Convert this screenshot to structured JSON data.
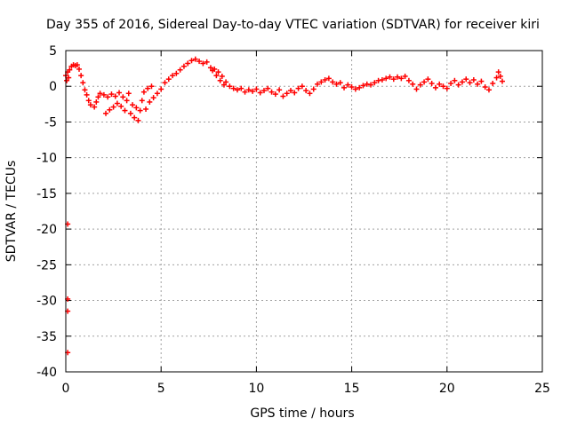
{
  "chart_data": {
    "type": "scatter",
    "title": "Day 355 of 2016, Sidereal Day-to-day VTEC variation (SDTVAR) for receiver kiri",
    "xlabel": "GPS time / hours",
    "ylabel": "SDTVAR / TECUs",
    "xlim": [
      0,
      25
    ],
    "ylim": [
      -40,
      5
    ],
    "xticks": [
      0,
      5,
      10,
      15,
      20,
      25
    ],
    "yticks": [
      5,
      0,
      -5,
      -10,
      -15,
      -20,
      -25,
      -30,
      -35,
      -40
    ],
    "grid": true,
    "marker": "+",
    "color": "#ff0000",
    "series": [
      {
        "name": "SDTVAR",
        "points": [
          [
            0.0,
            1.5
          ],
          [
            0.05,
            0.8
          ],
          [
            0.1,
            2.0
          ],
          [
            0.15,
            1.2
          ],
          [
            0.1,
            -19.3
          ],
          [
            0.1,
            -29.8
          ],
          [
            0.1,
            -31.5
          ],
          [
            0.1,
            -37.3
          ],
          [
            0.2,
            2.3
          ],
          [
            0.3,
            2.8
          ],
          [
            0.4,
            3.0
          ],
          [
            0.5,
            2.9
          ],
          [
            0.6,
            3.0
          ],
          [
            0.7,
            2.4
          ],
          [
            0.8,
            1.5
          ],
          [
            0.9,
            0.5
          ],
          [
            1.0,
            -0.5
          ],
          [
            1.1,
            -1.2
          ],
          [
            1.2,
            -2.0
          ],
          [
            1.3,
            -2.6
          ],
          [
            1.5,
            -2.9
          ],
          [
            1.6,
            -2.2
          ],
          [
            1.7,
            -1.5
          ],
          [
            1.8,
            -1.0
          ],
          [
            2.0,
            -1.2
          ],
          [
            2.1,
            -3.8
          ],
          [
            2.2,
            -1.5
          ],
          [
            2.3,
            -3.3
          ],
          [
            2.4,
            -1.1
          ],
          [
            2.5,
            -2.9
          ],
          [
            2.6,
            -1.4
          ],
          [
            2.7,
            -2.4
          ],
          [
            2.8,
            -0.9
          ],
          [
            2.9,
            -2.8
          ],
          [
            3.0,
            -1.5
          ],
          [
            3.1,
            -3.4
          ],
          [
            3.2,
            -2.0
          ],
          [
            3.3,
            -1.0
          ],
          [
            3.4,
            -3.8
          ],
          [
            3.5,
            -2.6
          ],
          [
            3.6,
            -4.4
          ],
          [
            3.7,
            -3.0
          ],
          [
            3.8,
            -4.8
          ],
          [
            3.9,
            -3.4
          ],
          [
            4.0,
            -2.0
          ],
          [
            4.1,
            -0.8
          ],
          [
            4.2,
            -3.2
          ],
          [
            4.3,
            -0.3
          ],
          [
            4.4,
            -2.2
          ],
          [
            4.5,
            0.0
          ],
          [
            4.6,
            -1.6
          ],
          [
            4.8,
            -1.0
          ],
          [
            5.0,
            -0.4
          ],
          [
            5.2,
            0.5
          ],
          [
            5.4,
            1.0
          ],
          [
            5.6,
            1.5
          ],
          [
            5.8,
            1.8
          ],
          [
            6.0,
            2.3
          ],
          [
            6.2,
            2.8
          ],
          [
            6.4,
            3.2
          ],
          [
            6.6,
            3.6
          ],
          [
            6.8,
            3.8
          ],
          [
            7.0,
            3.5
          ],
          [
            7.2,
            3.2
          ],
          [
            7.4,
            3.4
          ],
          [
            7.6,
            2.6
          ],
          [
            7.7,
            2.2
          ],
          [
            7.8,
            2.4
          ],
          [
            7.9,
            1.5
          ],
          [
            8.0,
            2.0
          ],
          [
            8.1,
            0.8
          ],
          [
            8.2,
            1.4
          ],
          [
            8.3,
            0.2
          ],
          [
            8.4,
            0.6
          ],
          [
            8.6,
            0.0
          ],
          [
            8.8,
            -0.3
          ],
          [
            9.0,
            -0.5
          ],
          [
            9.2,
            -0.3
          ],
          [
            9.4,
            -0.8
          ],
          [
            9.6,
            -0.5
          ],
          [
            9.8,
            -0.7
          ],
          [
            10.0,
            -0.4
          ],
          [
            10.2,
            -0.9
          ],
          [
            10.4,
            -0.6
          ],
          [
            10.6,
            -0.3
          ],
          [
            10.8,
            -0.8
          ],
          [
            11.0,
            -1.1
          ],
          [
            11.2,
            -0.5
          ],
          [
            11.4,
            -1.4
          ],
          [
            11.6,
            -1.0
          ],
          [
            11.8,
            -0.6
          ],
          [
            12.0,
            -0.9
          ],
          [
            12.2,
            -0.3
          ],
          [
            12.4,
            0.0
          ],
          [
            12.6,
            -0.6
          ],
          [
            12.8,
            -1.0
          ],
          [
            13.0,
            -0.4
          ],
          [
            13.2,
            0.3
          ],
          [
            13.4,
            0.6
          ],
          [
            13.6,
            0.9
          ],
          [
            13.8,
            1.1
          ],
          [
            14.0,
            0.6
          ],
          [
            14.2,
            0.3
          ],
          [
            14.4,
            0.5
          ],
          [
            14.6,
            -0.2
          ],
          [
            14.8,
            0.2
          ],
          [
            15.0,
            -0.1
          ],
          [
            15.2,
            -0.4
          ],
          [
            15.4,
            -0.2
          ],
          [
            15.6,
            0.1
          ],
          [
            15.8,
            0.3
          ],
          [
            16.0,
            0.2
          ],
          [
            16.2,
            0.5
          ],
          [
            16.4,
            0.8
          ],
          [
            16.6,
            0.9
          ],
          [
            16.8,
            1.1
          ],
          [
            17.0,
            1.3
          ],
          [
            17.2,
            1.0
          ],
          [
            17.4,
            1.3
          ],
          [
            17.6,
            1.1
          ],
          [
            17.8,
            1.4
          ],
          [
            18.0,
            0.8
          ],
          [
            18.2,
            0.3
          ],
          [
            18.4,
            -0.4
          ],
          [
            18.6,
            0.2
          ],
          [
            18.8,
            0.6
          ],
          [
            19.0,
            1.0
          ],
          [
            19.2,
            0.4
          ],
          [
            19.4,
            -0.2
          ],
          [
            19.6,
            0.3
          ],
          [
            19.8,
            0.0
          ],
          [
            20.0,
            -0.3
          ],
          [
            20.2,
            0.4
          ],
          [
            20.4,
            0.8
          ],
          [
            20.6,
            0.2
          ],
          [
            20.8,
            0.6
          ],
          [
            21.0,
            1.0
          ],
          [
            21.2,
            0.5
          ],
          [
            21.4,
            0.9
          ],
          [
            21.6,
            0.3
          ],
          [
            21.8,
            0.7
          ],
          [
            22.0,
            -0.1
          ],
          [
            22.2,
            -0.5
          ],
          [
            22.4,
            0.4
          ],
          [
            22.6,
            1.2
          ],
          [
            22.7,
            2.0
          ],
          [
            22.8,
            1.4
          ],
          [
            22.9,
            0.7
          ]
        ]
      }
    ]
  }
}
